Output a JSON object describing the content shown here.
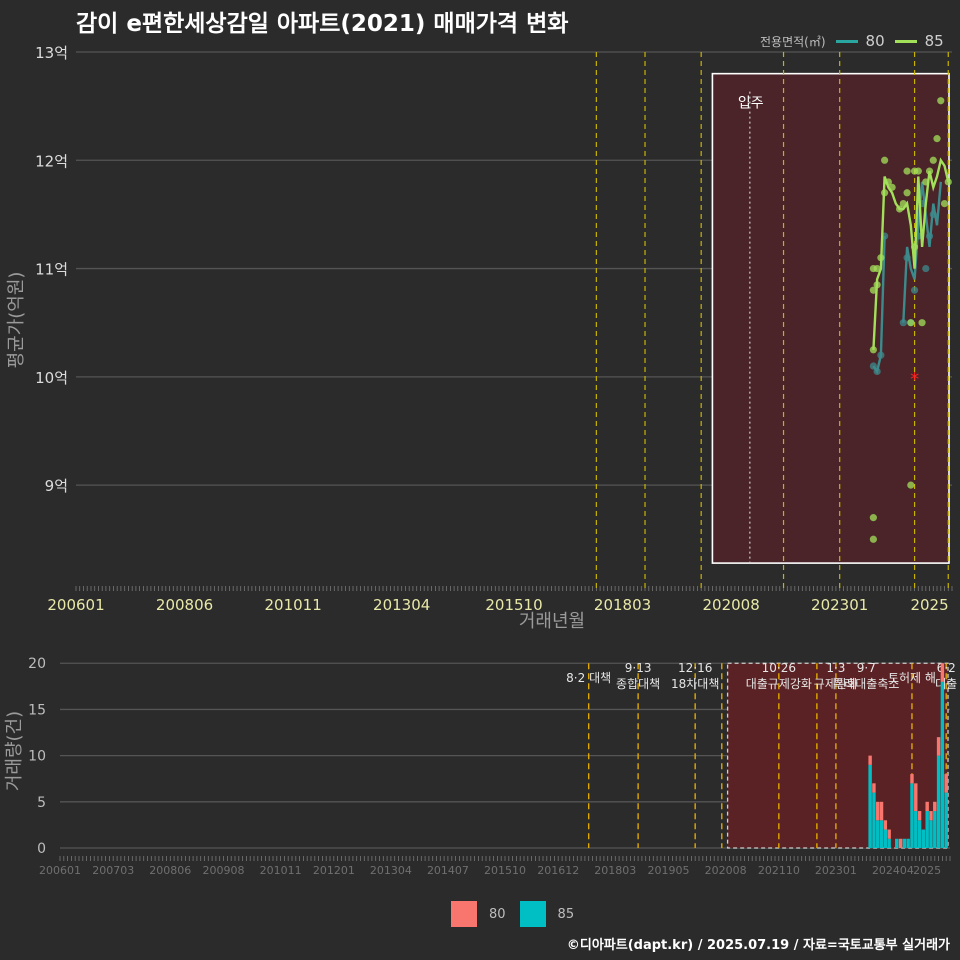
{
  "title": "감이 e편한세상감일 아파트(2021) 매매가격 변화",
  "footer": "©디아파트(dapt.kr) / 2025.07.19 / 자료=국토교통부 실거래가",
  "legend_top": {
    "title": "전용면적(㎡)",
    "items": [
      {
        "label": "80",
        "color": "#2aa6a0"
      },
      {
        "label": "85",
        "color": "#a3e05a"
      }
    ]
  },
  "legend_bottom": {
    "items": [
      {
        "label": "80",
        "color": "#f8766d"
      },
      {
        "label": "85",
        "color": "#00bfc4"
      }
    ]
  },
  "chart_data": [
    {
      "type": "line",
      "title": "감이 e편한세상감일 아파트(2021) 매매가격 변화",
      "xlabel": "거래년월",
      "ylabel": "평균가(억원)",
      "ylim": [
        8.05,
        13.0
      ],
      "xrange": [
        "2006-01",
        "2025-07"
      ],
      "y_ticks": [
        9,
        10,
        11,
        12,
        13
      ],
      "y_tick_labels": [
        "9억",
        "10억",
        "11억",
        "12억",
        "13억"
      ],
      "x_tick_labels": [
        "200601",
        "200806",
        "201011",
        "201304",
        "201510",
        "201803",
        "202008",
        "202301",
        "2025"
      ],
      "policy_lines": [
        "2017-08",
        "2018-09",
        "2019-12",
        "2021-10",
        "2023-01",
        "2024-09",
        "2025-06"
      ],
      "move_in": {
        "label": "입주",
        "date": "2021-01",
        "box": [
          "2020-03",
          "2025-07"
        ],
        "ybox": [
          8.28,
          12.8
        ]
      },
      "marker": {
        "date": "2024-09",
        "value": 10.0,
        "symbol": "*"
      },
      "series": [
        {
          "name": "80",
          "color": "#3d8a8c",
          "line": [
            [
              "2023-10",
              10.1
            ],
            [
              "2023-11",
              10.05
            ],
            [
              "2023-12",
              10.2
            ],
            [
              "2024-01",
              11.3
            ],
            [
              "2024-03",
              null
            ],
            [
              "2024-06",
              10.5
            ],
            [
              "2024-07",
              11.2
            ],
            [
              "2024-08",
              11.0
            ],
            [
              "2024-09",
              10.9
            ],
            [
              "2024-10",
              11.4
            ],
            [
              "2024-11",
              11.8
            ],
            [
              "2024-12",
              11.5
            ],
            [
              "2025-01",
              11.2
            ],
            [
              "2025-02",
              11.6
            ],
            [
              "2025-03",
              11.4
            ],
            [
              "2025-04",
              11.8
            ]
          ],
          "points": [
            [
              "2023-10",
              10.1
            ],
            [
              "2023-11",
              10.05
            ],
            [
              "2023-12",
              10.2
            ],
            [
              "2024-01",
              11.3
            ],
            [
              "2024-06",
              10.5
            ],
            [
              "2024-07",
              11.1
            ],
            [
              "2024-08",
              10.5
            ],
            [
              "2024-09",
              10.8
            ],
            [
              "2024-10",
              11.3
            ],
            [
              "2024-11",
              11.6
            ],
            [
              "2024-12",
              11.0
            ],
            [
              "2025-01",
              11.3
            ],
            [
              "2025-02",
              11.5
            ]
          ]
        },
        {
          "name": "85",
          "color": "#a3e05a",
          "line": [
            [
              "2023-10",
              10.25
            ],
            [
              "2023-11",
              10.9
            ],
            [
              "2023-12",
              11.0
            ],
            [
              "2024-01",
              11.85
            ],
            [
              "2024-02",
              11.75
            ],
            [
              "2024-03",
              11.7
            ],
            [
              "2024-04",
              11.6
            ],
            [
              "2024-05",
              11.55
            ],
            [
              "2024-06",
              11.55
            ],
            [
              "2024-07",
              11.6
            ],
            [
              "2024-08",
              11.4
            ],
            [
              "2024-09",
              11.0
            ],
            [
              "2024-10",
              11.85
            ],
            [
              "2024-11",
              11.2
            ],
            [
              "2024-12",
              11.6
            ],
            [
              "2025-01",
              11.9
            ],
            [
              "2025-02",
              11.75
            ],
            [
              "2025-03",
              11.85
            ],
            [
              "2025-04",
              12.0
            ],
            [
              "2025-05",
              11.95
            ],
            [
              "2025-06",
              11.8
            ]
          ],
          "points": [
            [
              "2023-10",
              10.25
            ],
            [
              "2023-10",
              10.8
            ],
            [
              "2023-10",
              11.0
            ],
            [
              "2023-10",
              8.7
            ],
            [
              "2023-10",
              8.5
            ],
            [
              "2023-11",
              10.85
            ],
            [
              "2023-11",
              11.0
            ],
            [
              "2023-12",
              11.1
            ],
            [
              "2024-01",
              12.0
            ],
            [
              "2024-01",
              11.7
            ],
            [
              "2024-02",
              11.8
            ],
            [
              "2024-03",
              11.75
            ],
            [
              "2024-05",
              11.55
            ],
            [
              "2024-06",
              11.6
            ],
            [
              "2024-07",
              11.9
            ],
            [
              "2024-07",
              11.7
            ],
            [
              "2024-08",
              9.0
            ],
            [
              "2024-08",
              10.5
            ],
            [
              "2024-09",
              11.9
            ],
            [
              "2024-09",
              11.2
            ],
            [
              "2024-10",
              11.9
            ],
            [
              "2024-11",
              10.5
            ],
            [
              "2024-12",
              11.8
            ],
            [
              "2025-01",
              11.9
            ],
            [
              "2025-02",
              12.0
            ],
            [
              "2025-03",
              12.2
            ],
            [
              "2025-04",
              12.55
            ],
            [
              "2025-05",
              11.6
            ],
            [
              "2025-06",
              11.8
            ]
          ]
        }
      ]
    },
    {
      "type": "bar",
      "stacked": true,
      "ylabel": "거래량(건)",
      "ylim": [
        0,
        21
      ],
      "y_ticks": [
        0,
        5,
        10,
        15,
        20
      ],
      "xrange": [
        "2006-01",
        "2025-07"
      ],
      "x_tick_labels": [
        "200601",
        "200703",
        "200806",
        "200908",
        "201011",
        "201201",
        "201304",
        "201407",
        "201510",
        "201612",
        "201803",
        "201905",
        "202008",
        "202110",
        "202301",
        "202404",
        "2025"
      ],
      "policy_lines": [
        "2017-08",
        "2018-09",
        "2019-12",
        "2020-07",
        "2021-10",
        "2022-08",
        "2023-01",
        "2024-09",
        "2025-06"
      ],
      "annotations": [
        {
          "date": "2017-08",
          "lines": [
            "8·2 대책"
          ]
        },
        {
          "date": "2018-09",
          "lines": [
            "9·13",
            "종합대책"
          ]
        },
        {
          "date": "2019-12",
          "lines": [
            "12·16",
            "18차대책"
          ]
        },
        {
          "date": "2021-10",
          "lines": [
            "10·26",
            "대출규제강화"
          ]
        },
        {
          "date": "2023-01",
          "lines": [
            "1·3",
            "규제완화"
          ]
        },
        {
          "date": "2023-09",
          "lines": [
            "9·7",
            "특례대출축소"
          ]
        },
        {
          "date": "2024-09",
          "lines": [
            "토허제 해"
          ]
        },
        {
          "date": "2025-06",
          "lines": [
            "6·2",
            "대출"
          ]
        }
      ],
      "highlight_box": [
        "2020-08",
        "2025-07"
      ],
      "categories": [
        "2023-10",
        "2023-11",
        "2023-12",
        "2024-01",
        "2024-02",
        "2024-03",
        "2024-04",
        "2024-05",
        "2024-06",
        "2024-07",
        "2024-08",
        "2024-09",
        "2024-10",
        "2024-11",
        "2024-12",
        "2025-01",
        "2025-02",
        "2025-03",
        "2025-04",
        "2025-05",
        "2025-06"
      ],
      "series": [
        {
          "name": "80",
          "color": "#f8766d",
          "values": [
            1,
            1,
            2,
            2,
            1,
            1,
            0,
            0,
            1,
            0,
            0,
            1,
            3,
            1,
            0,
            1,
            1,
            1,
            2,
            2,
            2
          ]
        },
        {
          "name": "85",
          "color": "#00bfc4",
          "values": [
            9,
            6,
            3,
            3,
            2,
            1,
            0,
            1,
            0,
            1,
            1,
            7,
            4,
            3,
            2,
            4,
            3,
            4,
            10,
            18,
            6
          ]
        }
      ]
    }
  ]
}
